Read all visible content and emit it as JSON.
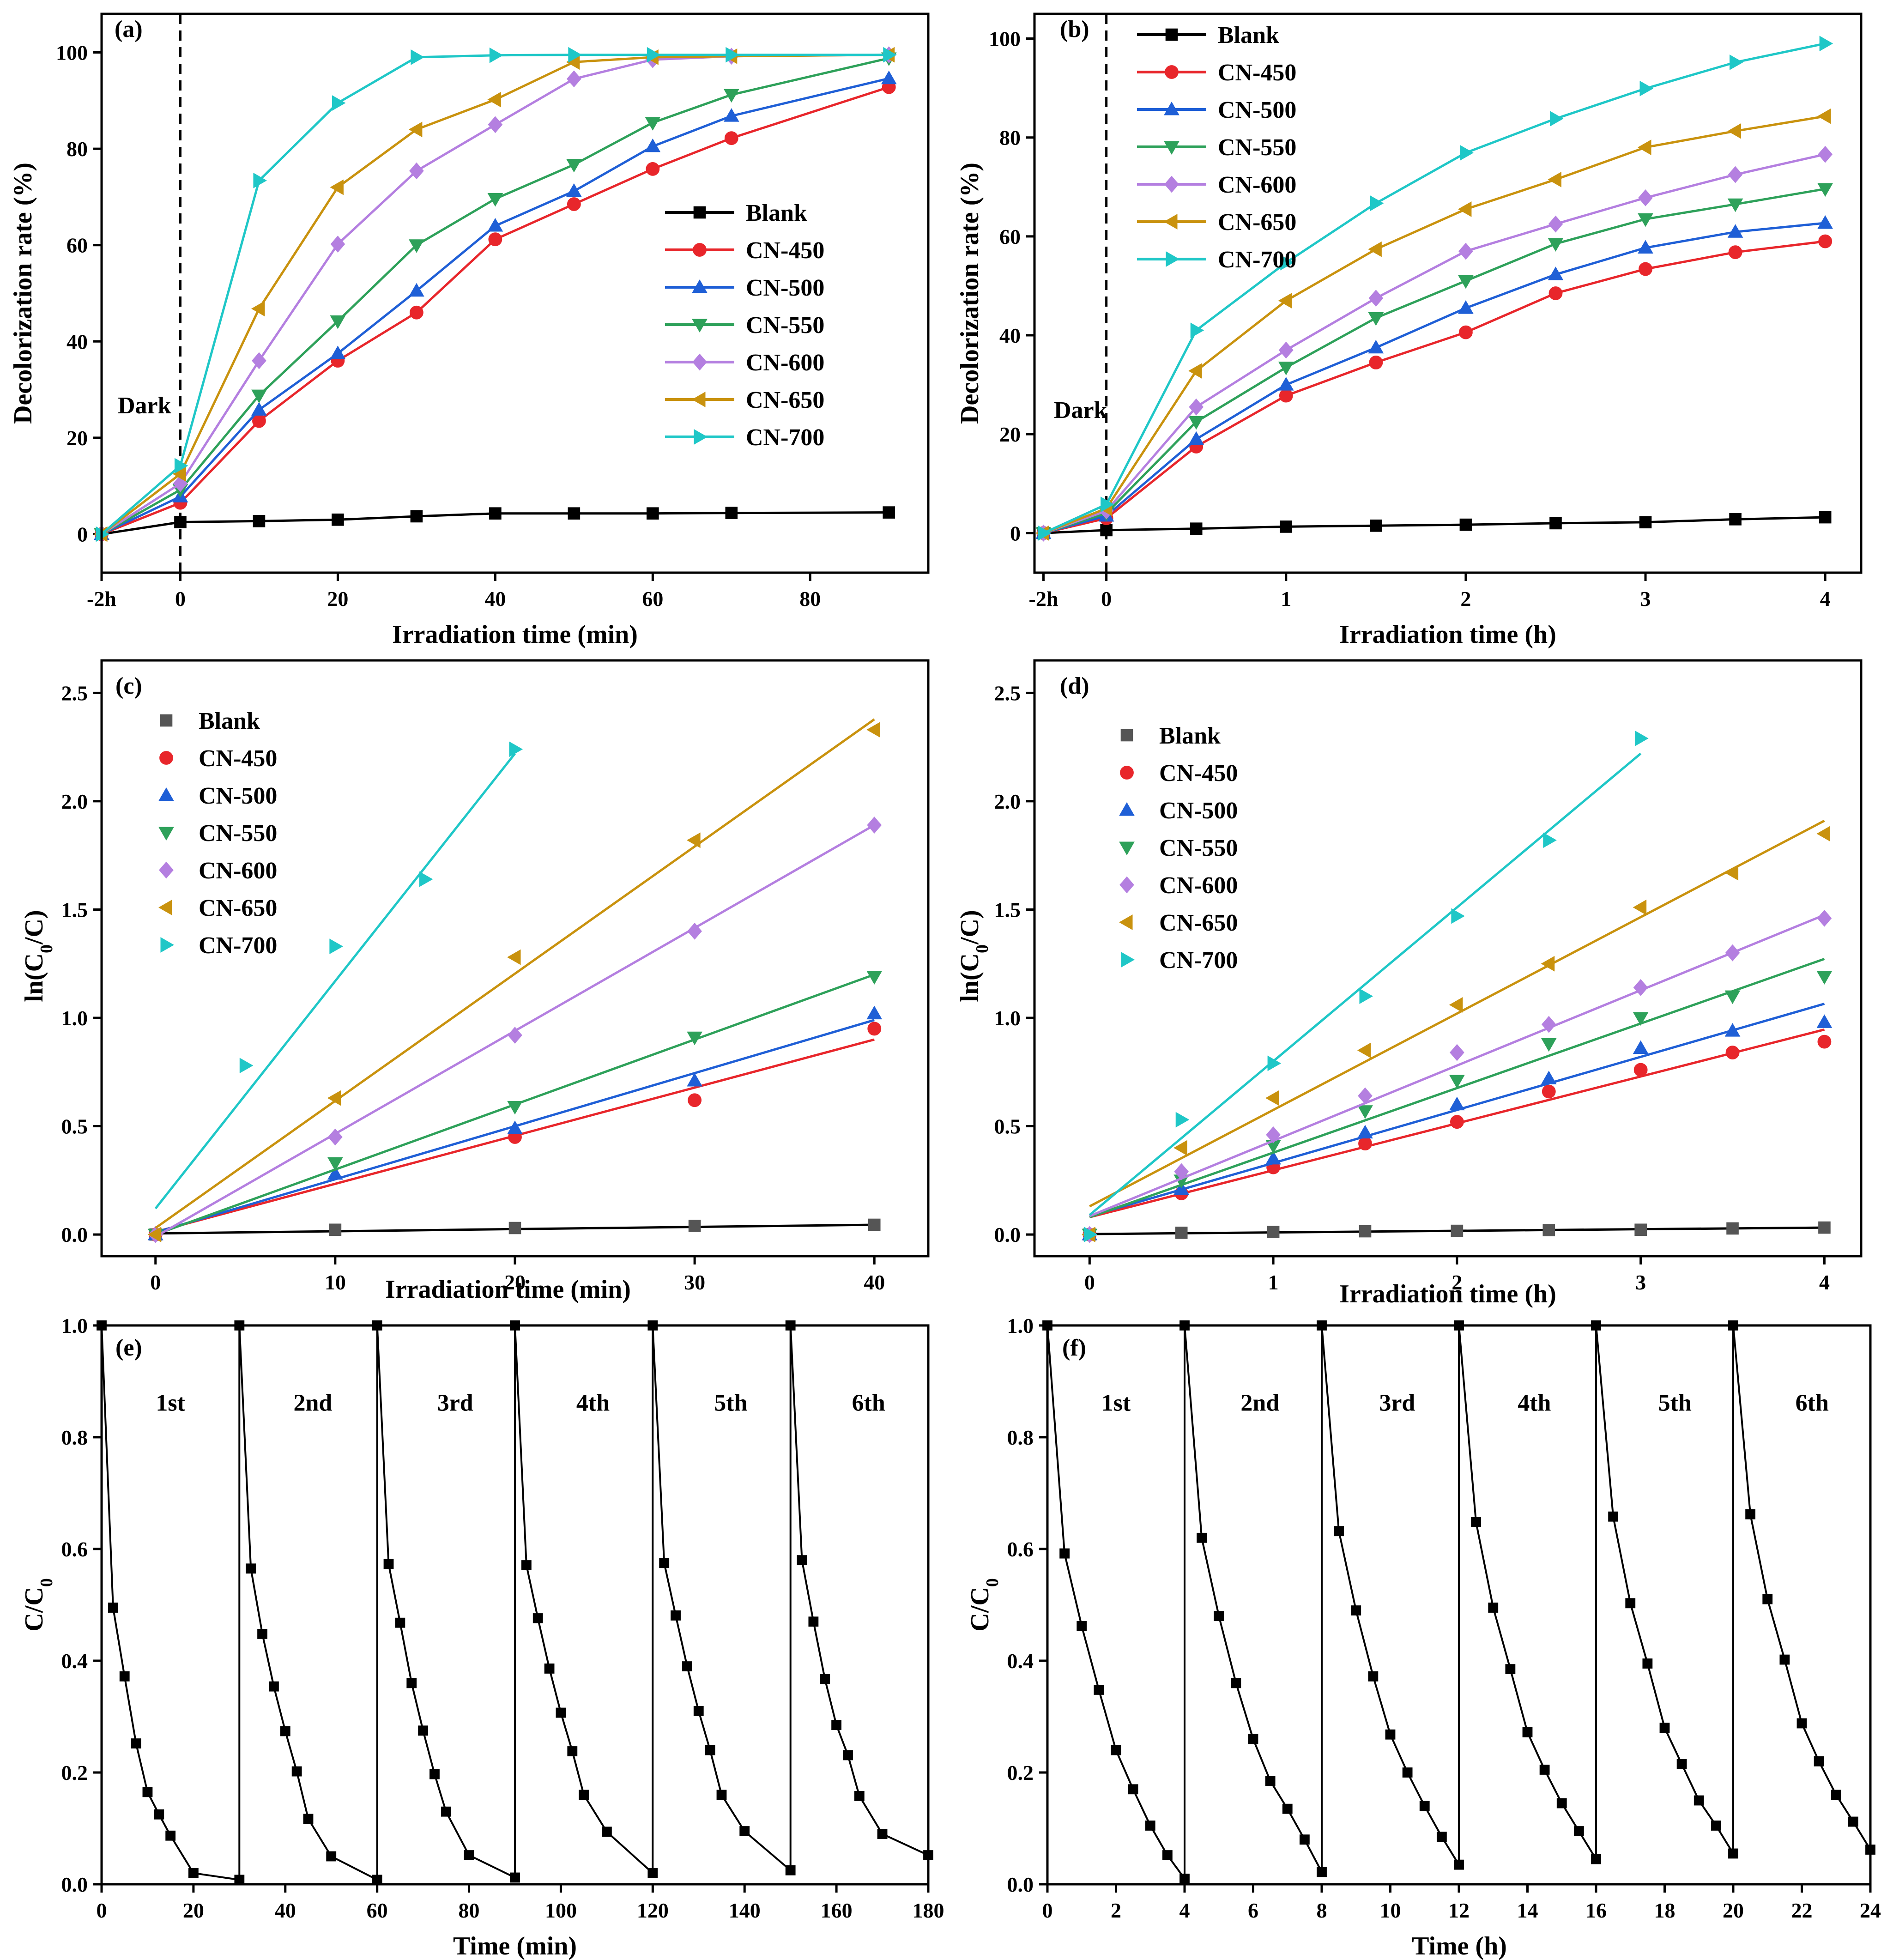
{
  "figure_colors": {
    "Blank": "#000000",
    "CN-450": "#e8262b",
    "CN-500": "#1f5fd6",
    "CN-550": "#2ea15a",
    "CN-600": "#b47fe0",
    "CN-650": "#c9920e",
    "CN-700": "#1fc7c7",
    "Blank_fit": "#555555"
  },
  "chart_data": [
    {
      "panel": "(a)",
      "type": "line",
      "xlabel": "Irradiation time (min)",
      "ylabel": "Decolorization rate (%)",
      "xlim": [
        -10,
        95
      ],
      "ylim": [
        -8,
        108
      ],
      "xticks": [
        {
          "v": -10,
          "label": "-2h"
        },
        {
          "v": 0,
          "label": "0"
        },
        {
          "v": 20,
          "label": "20"
        },
        {
          "v": 40,
          "label": "40"
        },
        {
          "v": 60,
          "label": "60"
        },
        {
          "v": 80,
          "label": "80"
        }
      ],
      "yticks": [
        0,
        20,
        40,
        60,
        80,
        100
      ],
      "dark_label": "Dark",
      "legend_position": "middle-right",
      "x": [
        -10,
        0,
        10,
        20,
        30,
        40,
        50,
        60,
        70,
        90
      ],
      "series": [
        {
          "name": "Blank",
          "marker": "square",
          "values": [
            0,
            2.5,
            2.7,
            3,
            3.7,
            4.3,
            4.3,
            4.3,
            4.4,
            4.5
          ]
        },
        {
          "name": "CN-450",
          "marker": "circle",
          "values": [
            0,
            6.5,
            23.5,
            36,
            46,
            61.2,
            68.5,
            75.8,
            82.2,
            92.8
          ]
        },
        {
          "name": "CN-500",
          "marker": "tri-up",
          "values": [
            0,
            7.8,
            25.8,
            37.5,
            50.5,
            64,
            71.2,
            80.5,
            86.8,
            94.6
          ]
        },
        {
          "name": "CN-550",
          "marker": "tri-down",
          "values": [
            0,
            9.2,
            28.8,
            44.2,
            60,
            69.6,
            76.7,
            85.4,
            91.2,
            98.8
          ]
        },
        {
          "name": "CN-600",
          "marker": "diamond",
          "values": [
            0,
            10.5,
            36,
            60.2,
            75.4,
            85,
            94.5,
            98.5,
            99.2,
            99.5
          ]
        },
        {
          "name": "CN-650",
          "marker": "tri-left",
          "values": [
            0,
            12.5,
            46.8,
            72,
            84,
            90.2,
            98,
            99,
            99.2,
            99.5
          ]
        },
        {
          "name": "CN-700",
          "marker": "tri-right",
          "values": [
            0,
            14.2,
            73.4,
            89.5,
            99,
            99.4,
            99.5,
            99.5,
            99.5,
            99.5
          ]
        }
      ]
    },
    {
      "panel": "(b)",
      "type": "line",
      "xlabel": "Irradiation time (h)",
      "ylabel": "Decolorization rate (%)",
      "xlim": [
        -0.4,
        4.2
      ],
      "ylim": [
        -8,
        105
      ],
      "xticks": [
        {
          "v": -0.35,
          "label": "-2h"
        },
        {
          "v": 0,
          "label": "0"
        },
        {
          "v": 1,
          "label": "1"
        },
        {
          "v": 2,
          "label": "2"
        },
        {
          "v": 3,
          "label": "3"
        },
        {
          "v": 4,
          "label": "4"
        }
      ],
      "yticks": [
        0,
        20,
        40,
        60,
        80,
        100
      ],
      "dark_label": "Dark",
      "legend_position": "top-left",
      "x": [
        -0.35,
        0,
        0.5,
        1,
        1.5,
        2,
        2.5,
        3,
        3.5,
        4
      ],
      "series": [
        {
          "name": "Blank",
          "marker": "square",
          "values": [
            0,
            0.6,
            0.9,
            1.3,
            1.5,
            1.7,
            2.0,
            2.2,
            2.8,
            3.2
          ]
        },
        {
          "name": "CN-450",
          "marker": "circle",
          "values": [
            0,
            3,
            17.5,
            27.8,
            34.5,
            40.6,
            48.5,
            53.4,
            56.8,
            59
          ]
        },
        {
          "name": "CN-500",
          "marker": "tri-up",
          "values": [
            0,
            3.5,
            19,
            30,
            37.5,
            45.5,
            52.3,
            57.7,
            60.9,
            62.7
          ]
        },
        {
          "name": "CN-550",
          "marker": "tri-down",
          "values": [
            0,
            4,
            22.5,
            33.5,
            43.5,
            51,
            58.5,
            63.5,
            66.5,
            69.6
          ]
        },
        {
          "name": "CN-600",
          "marker": "diamond",
          "values": [
            0,
            4.5,
            25.5,
            37,
            47.5,
            57,
            62.5,
            67.8,
            72.5,
            76.6
          ]
        },
        {
          "name": "CN-650",
          "marker": "tri-left",
          "values": [
            0,
            5,
            32.8,
            47,
            57.4,
            65.5,
            71.5,
            78,
            81.3,
            84.3
          ]
        },
        {
          "name": "CN-700",
          "marker": "tri-right",
          "values": [
            0,
            5.8,
            41,
            54.7,
            66.7,
            76.9,
            83.8,
            89.9,
            95.2,
            99
          ]
        }
      ]
    },
    {
      "panel": "(c)",
      "type": "scatter",
      "xlabel": "Irradiation time (min)",
      "ylabel": "ln(C0/C)",
      "xlim": [
        -3,
        43
      ],
      "ylim": [
        -0.1,
        2.65
      ],
      "xticks": [
        {
          "v": 0,
          "label": "0"
        },
        {
          "v": 10,
          "label": "10"
        },
        {
          "v": 20,
          "label": "20"
        },
        {
          "v": 30,
          "label": "30"
        },
        {
          "v": 40,
          "label": "40"
        }
      ],
      "yticks": [
        0,
        0.5,
        1,
        1.5,
        2,
        2.5
      ],
      "legend_position": "top-left",
      "series": [
        {
          "name": "Blank",
          "marker": "square",
          "x": [
            0,
            10,
            20,
            30,
            40
          ],
          "values": [
            0,
            0.022,
            0.03,
            0.04,
            0.045
          ],
          "fit": [
            0.005,
            0.001
          ]
        },
        {
          "name": "CN-450",
          "marker": "circle",
          "x": [
            0,
            20,
            30,
            40
          ],
          "values": [
            0,
            0.45,
            0.62,
            0.95
          ],
          "fit": [
            0.012,
            0.0222
          ]
        },
        {
          "name": "CN-500",
          "marker": "tri-up",
          "x": [
            0,
            10,
            20,
            30,
            40
          ],
          "values": [
            0,
            0.28,
            0.49,
            0.71,
            1.02
          ],
          "fit": [
            0.01,
            0.0245
          ]
        },
        {
          "name": "CN-550",
          "marker": "tri-down",
          "x": [
            0,
            10,
            20,
            30,
            40
          ],
          "values": [
            0,
            0.33,
            0.59,
            0.91,
            1.19
          ],
          "fit": [
            0.0,
            0.03
          ]
        },
        {
          "name": "CN-600",
          "marker": "diamond",
          "x": [
            0,
            10,
            20,
            30,
            40
          ],
          "values": [
            0,
            0.45,
            0.92,
            1.4,
            1.89
          ],
          "fit": [
            -0.01,
            0.0475
          ]
        },
        {
          "name": "CN-650",
          "marker": "tri-left",
          "x": [
            0,
            10,
            20,
            30,
            40
          ],
          "values": [
            0,
            0.63,
            1.28,
            1.82,
            2.33
          ],
          "fit": [
            0.03,
            0.0587
          ]
        },
        {
          "name": "CN-700",
          "marker": "tri-right",
          "x": [
            5,
            10,
            15,
            20
          ],
          "values": [
            0.78,
            1.33,
            1.64,
            2.24
          ],
          "fit": [
            0.12,
            0.105
          ],
          "fit_range": [
            0,
            20
          ]
        }
      ]
    },
    {
      "panel": "(d)",
      "type": "scatter",
      "xlabel": "Irradiation time (h)",
      "ylabel": "ln(C0/C)",
      "xlim": [
        -0.3,
        4.2
      ],
      "ylim": [
        -0.1,
        2.65
      ],
      "xticks": [
        {
          "v": 0,
          "label": "0"
        },
        {
          "v": 1,
          "label": "1"
        },
        {
          "v": 2,
          "label": "2"
        },
        {
          "v": 3,
          "label": "3"
        },
        {
          "v": 4,
          "label": "4"
        }
      ],
      "yticks": [
        0,
        0.5,
        1,
        1.5,
        2,
        2.5
      ],
      "legend_position": "top-left",
      "series": [
        {
          "name": "Blank",
          "marker": "square",
          "x": [
            0,
            0.5,
            1,
            1.5,
            2,
            2.5,
            3,
            3.5,
            4
          ],
          "values": [
            0,
            0.008,
            0.012,
            0.015,
            0.017,
            0.02,
            0.022,
            0.028,
            0.032
          ],
          "fit": [
            0.002,
            0.0075
          ]
        },
        {
          "name": "CN-450",
          "marker": "circle",
          "x": [
            0,
            0.5,
            1,
            1.5,
            2,
            2.5,
            3,
            3.5,
            4
          ],
          "values": [
            0,
            0.19,
            0.31,
            0.42,
            0.52,
            0.66,
            0.76,
            0.84,
            0.89
          ],
          "fit": [
            0.08,
            0.2165
          ]
        },
        {
          "name": "CN-500",
          "marker": "tri-up",
          "x": [
            0,
            0.5,
            1,
            1.5,
            2,
            2.5,
            3,
            3.5,
            4
          ],
          "values": [
            0,
            0.21,
            0.35,
            0.47,
            0.6,
            0.72,
            0.86,
            0.94,
            0.98
          ],
          "fit": [
            0.085,
            0.245
          ]
        },
        {
          "name": "CN-550",
          "marker": "tri-down",
          "x": [
            0,
            0.5,
            1,
            1.5,
            2,
            2.5,
            3,
            3.5,
            4
          ],
          "values": [
            0,
            0.25,
            0.41,
            0.57,
            0.71,
            0.88,
            1.0,
            1.1,
            1.19
          ],
          "fit": [
            0.08,
            0.298
          ]
        },
        {
          "name": "CN-600",
          "marker": "diamond",
          "x": [
            0,
            0.5,
            1,
            1.5,
            2,
            2.5,
            3,
            3.5,
            4
          ],
          "values": [
            0,
            0.29,
            0.46,
            0.64,
            0.84,
            0.97,
            1.14,
            1.3,
            1.46
          ],
          "fit": [
            0.085,
            0.3475
          ]
        },
        {
          "name": "CN-650",
          "marker": "tri-left",
          "x": [
            0,
            0.5,
            1,
            1.5,
            2,
            2.5,
            3,
            3.5,
            4
          ],
          "values": [
            0,
            0.4,
            0.63,
            0.85,
            1.06,
            1.25,
            1.51,
            1.67,
            1.85
          ],
          "fit": [
            0.13,
            0.445
          ]
        },
        {
          "name": "CN-700",
          "marker": "tri-right",
          "x": [
            0,
            0.5,
            1,
            1.5,
            2,
            2.5,
            3
          ],
          "values": [
            0,
            0.53,
            0.79,
            1.1,
            1.47,
            1.82,
            2.29
          ],
          "fit": [
            0.09,
            0.71
          ],
          "fit_range": [
            0,
            3
          ]
        }
      ]
    },
    {
      "panel": "(e)",
      "type": "line",
      "xlabel": "Time (min)",
      "ylabel": "C/C0",
      "xlim": [
        0,
        180
      ],
      "ylim": [
        0,
        1
      ],
      "xticks": [
        {
          "v": 0,
          "label": "0"
        },
        {
          "v": 20,
          "label": "20"
        },
        {
          "v": 40,
          "label": "40"
        },
        {
          "v": 60,
          "label": "60"
        },
        {
          "v": 80,
          "label": "80"
        },
        {
          "v": 100,
          "label": "100"
        },
        {
          "v": 120,
          "label": "120"
        },
        {
          "v": 140,
          "label": "140"
        },
        {
          "v": 160,
          "label": "160"
        },
        {
          "v": 180,
          "label": "180"
        }
      ],
      "yticks": [
        0,
        0.2,
        0.4,
        0.6,
        0.8,
        1
      ],
      "cycle_labels": [
        "1st",
        "2nd",
        "3rd",
        "4th",
        "5th",
        "6th"
      ],
      "cycle_label_x": [
        15,
        46,
        77,
        107,
        137,
        167
      ],
      "cycle_period": 30,
      "cycle_offsets": [
        0,
        2.5,
        5,
        7.5,
        10,
        12.5,
        15,
        20,
        30
      ],
      "cycles": [
        [
          1.0,
          0.495,
          0.372,
          0.252,
          0.165,
          0.125,
          0.087,
          0.02,
          0.008
        ],
        [
          1.0,
          0.565,
          0.448,
          0.354,
          0.274,
          0.202,
          0.117,
          0.05,
          0.008
        ],
        [
          1.0,
          0.573,
          0.468,
          0.36,
          0.275,
          0.197,
          0.13,
          0.052,
          0.012
        ],
        [
          1.0,
          0.571,
          0.476,
          0.386,
          0.307,
          0.238,
          0.16,
          0.094,
          0.02
        ],
        [
          1.0,
          0.575,
          0.481,
          0.39,
          0.31,
          0.24,
          0.16,
          0.095,
          0.025
        ],
        [
          1.0,
          0.58,
          0.47,
          0.367,
          0.285,
          0.231,
          0.158,
          0.09,
          0.052
        ]
      ]
    },
    {
      "panel": "(f)",
      "type": "line",
      "xlabel": "Time (h)",
      "ylabel": "C/C0",
      "xlim": [
        0,
        24
      ],
      "ylim": [
        0,
        1
      ],
      "xticks": [
        {
          "v": 0,
          "label": "0"
        },
        {
          "v": 2,
          "label": "2"
        },
        {
          "v": 4,
          "label": "4"
        },
        {
          "v": 6,
          "label": "6"
        },
        {
          "v": 8,
          "label": "8"
        },
        {
          "v": 10,
          "label": "10"
        },
        {
          "v": 12,
          "label": "12"
        },
        {
          "v": 14,
          "label": "14"
        },
        {
          "v": 16,
          "label": "16"
        },
        {
          "v": 18,
          "label": "18"
        },
        {
          "v": 20,
          "label": "20"
        },
        {
          "v": 22,
          "label": "22"
        },
        {
          "v": 24,
          "label": "24"
        }
      ],
      "yticks": [
        0,
        0.2,
        0.4,
        0.6,
        0.8,
        1
      ],
      "cycle_labels": [
        "1st",
        "2nd",
        "3rd",
        "4th",
        "5th",
        "6th"
      ],
      "cycle_label_x": [
        2,
        6.2,
        10.2,
        14.2,
        18.3,
        22.3
      ],
      "cycle_period": 4,
      "cycle_offsets": [
        0,
        0.5,
        1,
        1.5,
        2,
        2.5,
        3,
        3.5,
        4
      ],
      "cycles": [
        [
          1.0,
          0.592,
          0.462,
          0.348,
          0.24,
          0.17,
          0.105,
          0.052,
          0.01
        ],
        [
          1.0,
          0.62,
          0.48,
          0.36,
          0.26,
          0.185,
          0.135,
          0.08,
          0.022
        ],
        [
          1.0,
          0.632,
          0.49,
          0.372,
          0.268,
          0.2,
          0.14,
          0.085,
          0.035
        ],
        [
          1.0,
          0.648,
          0.495,
          0.385,
          0.272,
          0.205,
          0.145,
          0.095,
          0.045
        ],
        [
          1.0,
          0.658,
          0.503,
          0.395,
          0.28,
          0.215,
          0.15,
          0.105,
          0.055
        ],
        [
          1.0,
          0.662,
          0.51,
          0.402,
          0.288,
          0.22,
          0.16,
          0.112,
          0.062
        ]
      ]
    }
  ],
  "panel_labels": {
    "a": "(a)",
    "b": "(b)",
    "c": "(c)",
    "d": "(d)",
    "e": "(e)",
    "f": "(f)"
  },
  "axis_labels": {
    "a_x": "Irradiation time (min)",
    "a_y": "Decolorization rate (%)",
    "b_x": "Irradiation time (h)",
    "b_y": "Decolorization rate (%)",
    "c_x": "Irradiation time (min)",
    "c_y_main": "ln(C",
    "c_y_sub": "0",
    "c_y_tail": "/C)",
    "d_x": "Irradiation time (h)",
    "d_y_main": "ln(C",
    "d_y_sub": "0",
    "d_y_tail": "/C)",
    "e_x": "Time (min)",
    "e_y_main": "C/C",
    "e_y_sub": "0",
    "f_x": "Time (h)",
    "f_y_main": "C/C",
    "f_y_sub": "0"
  },
  "dark_labels": {
    "a": "Dark",
    "b": "Dark"
  }
}
